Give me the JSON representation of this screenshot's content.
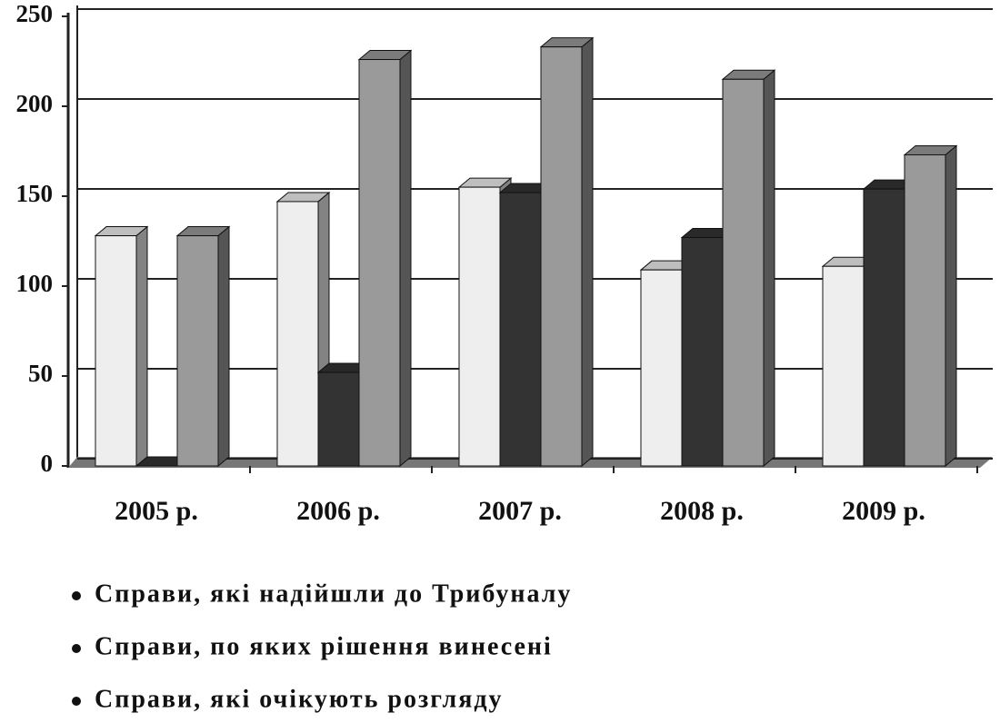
{
  "chart_data": {
    "type": "bar3d",
    "categories": [
      "2005 р.",
      "2006 р.",
      "2007 р.",
      "2008 р.",
      "2009 р."
    ],
    "series": [
      {
        "name": "Справи, які надійшли до Трибуналу",
        "color": "#eeeeee",
        "values": [
          128,
          147,
          155,
          109,
          111
        ]
      },
      {
        "name": "Справи, по яких рішення винесені",
        "color": "#333333",
        "values": [
          0,
          52,
          152,
          127,
          154
        ]
      },
      {
        "name": "Справи, які очікують розгляду",
        "color": "#9a9a9a",
        "values": [
          128,
          226,
          233,
          215,
          173
        ]
      }
    ],
    "ylim": [
      0,
      250
    ],
    "yticks": [
      0,
      50,
      100,
      150,
      200,
      250
    ],
    "grid": true
  }
}
